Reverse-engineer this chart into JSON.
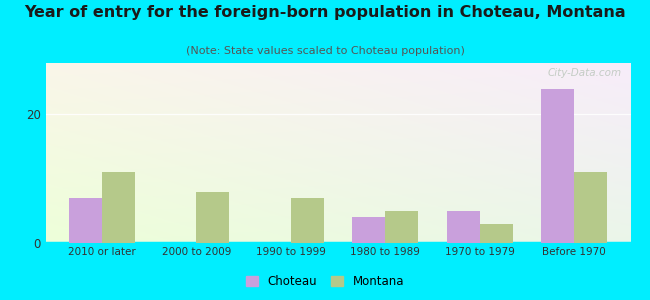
{
  "categories": [
    "2010 or later",
    "2000 to 2009",
    "1990 to 1999",
    "1980 to 1989",
    "1970 to 1979",
    "Before 1970"
  ],
  "choteau_values": [
    7,
    0,
    0,
    4,
    5,
    24
  ],
  "montana_values": [
    11,
    8,
    7,
    5,
    3,
    11
  ],
  "choteau_color": "#c9a0dc",
  "montana_color": "#b5c98a",
  "title": "Year of entry for the foreign-born population in Choteau, Montana",
  "subtitle": "(Note: State values scaled to Choteau population)",
  "title_fontsize": 11.5,
  "subtitle_fontsize": 8,
  "ylim": [
    0,
    28
  ],
  "background_outer": "#00eeff",
  "watermark": "City-Data.com",
  "legend_choteau": "Choteau",
  "legend_montana": "Montana",
  "bar_width": 0.35
}
